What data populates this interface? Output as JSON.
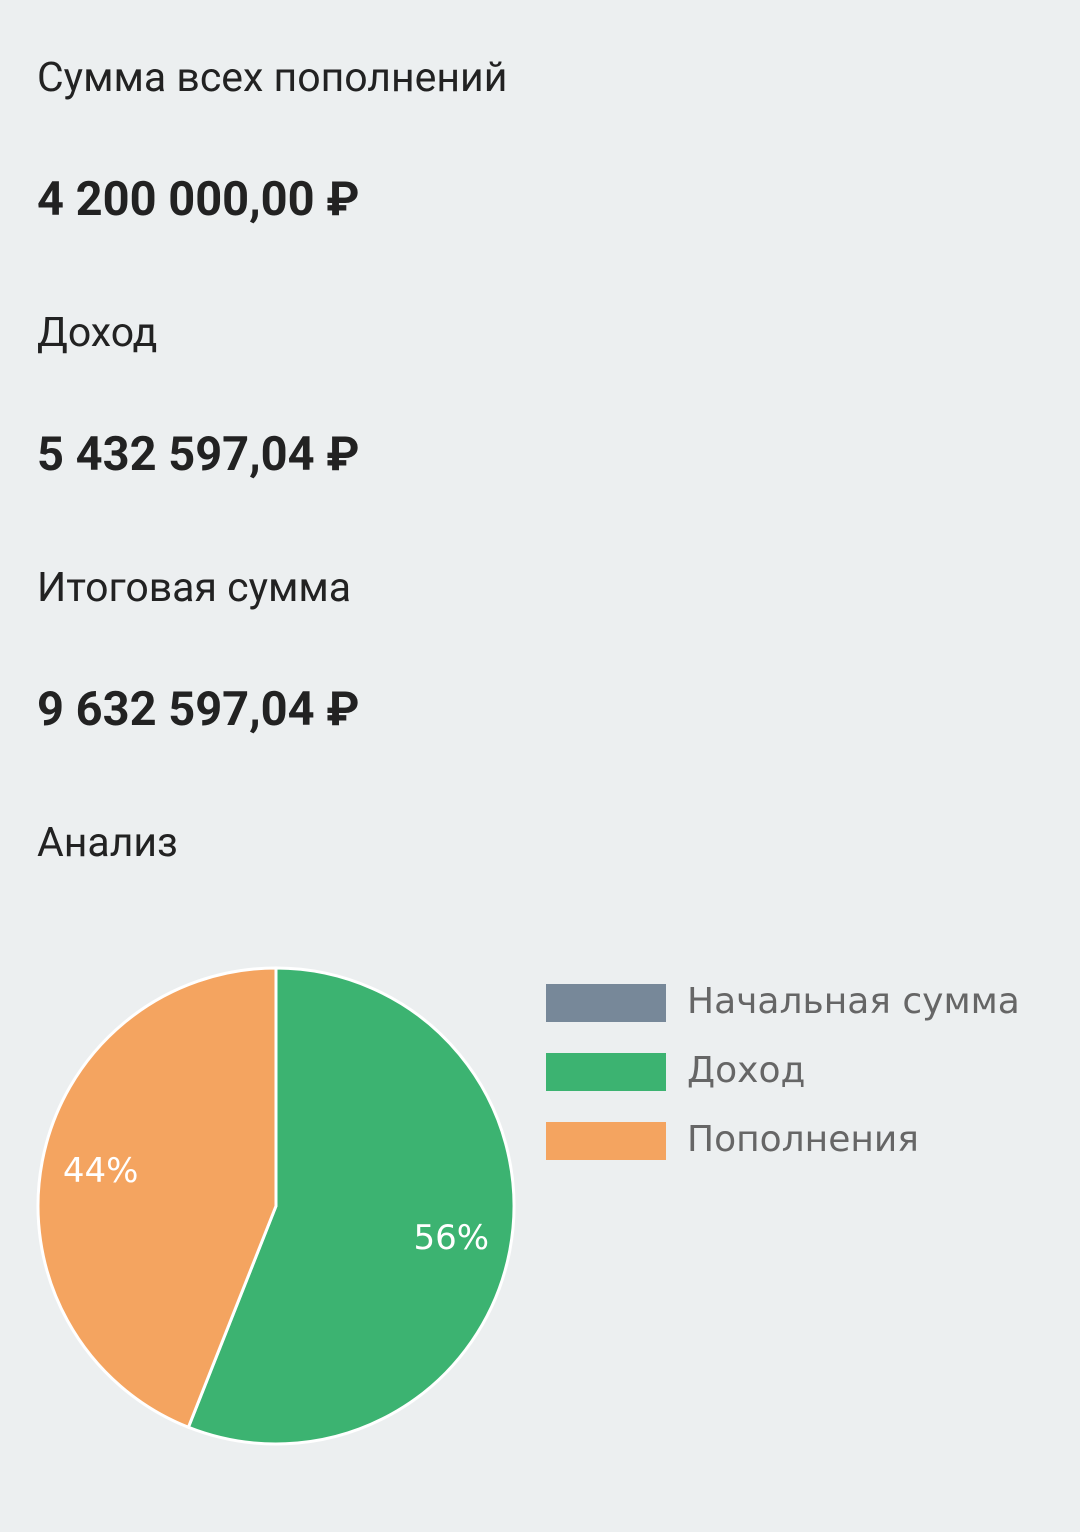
{
  "summary": [
    {
      "label": "Сумма всех пополнений",
      "value": "4 200 000,00 ₽"
    },
    {
      "label": "Доход",
      "value": "5 432 597,04 ₽"
    },
    {
      "label": "Итоговая сумма",
      "value": "9 632 597,04 ₽"
    }
  ],
  "section_title": "Анализ",
  "chart_data": {
    "type": "pie",
    "categories": [
      "Начальная сумма",
      "Доход",
      "Пополнения"
    ],
    "values": [
      0,
      56,
      44
    ],
    "value_labels": [
      null,
      "56%",
      "44%"
    ],
    "colors": [
      "#778899",
      "#3cb371",
      "#f4a460"
    ],
    "legend": "right"
  }
}
